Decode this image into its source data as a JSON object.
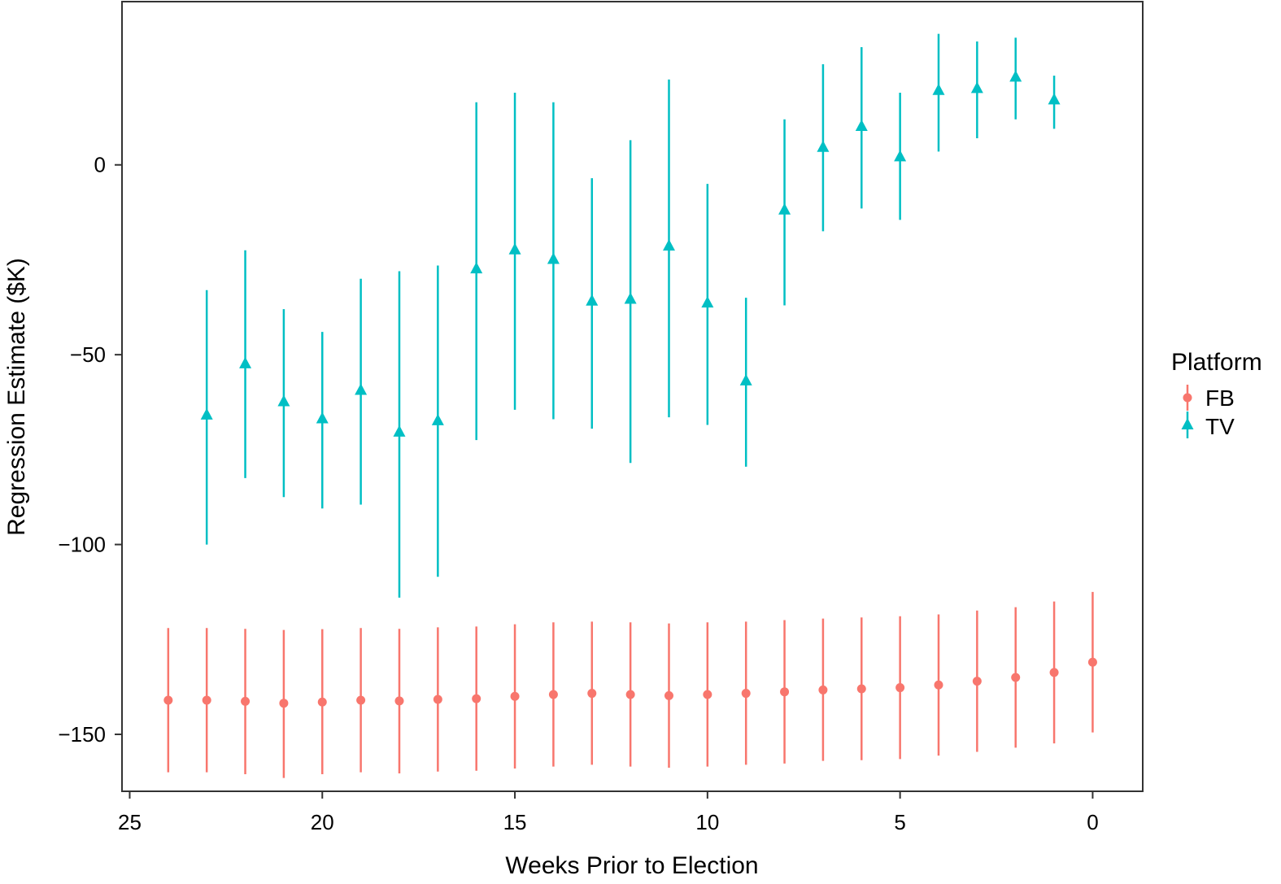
{
  "chart_data": {
    "type": "scatter",
    "subtype": "point-range (estimate with interval)",
    "xlabel": "Weeks Prior to Election",
    "ylabel": "Regression Estimate ($K)",
    "xlim": [
      25.2,
      -1.3
    ],
    "x_reversed": true,
    "ylim": [
      -165,
      43
    ],
    "xticks": [
      25,
      20,
      15,
      10,
      5,
      0
    ],
    "yticks": [
      0,
      -50,
      -100,
      -150
    ],
    "x_tick_labels": [
      "25",
      "20",
      "15",
      "10",
      "5",
      "0"
    ],
    "y_tick_labels": [
      "0",
      "−50",
      "−100",
      "−150"
    ],
    "grid": false,
    "legend": {
      "title": "Platform",
      "position": "right",
      "entries": [
        {
          "label": "FB",
          "marker": "circle",
          "color": "#F8766D"
        },
        {
          "label": "TV",
          "marker": "triangle",
          "color": "#00BFC4"
        }
      ]
    },
    "series": [
      {
        "name": "FB",
        "marker": "circle",
        "color": "#F8766D",
        "points": [
          {
            "x": 24,
            "y": -141.0,
            "lo": -160.0,
            "hi": -122.0
          },
          {
            "x": 23,
            "y": -141.0,
            "lo": -160.0,
            "hi": -122.0
          },
          {
            "x": 22,
            "y": -141.3,
            "lo": -160.5,
            "hi": -122.2
          },
          {
            "x": 21,
            "y": -141.8,
            "lo": -161.5,
            "hi": -122.5
          },
          {
            "x": 20,
            "y": -141.5,
            "lo": -160.5,
            "hi": -122.3
          },
          {
            "x": 19,
            "y": -141.0,
            "lo": -160.0,
            "hi": -122.0
          },
          {
            "x": 18,
            "y": -141.2,
            "lo": -160.3,
            "hi": -122.2
          },
          {
            "x": 17,
            "y": -140.8,
            "lo": -159.8,
            "hi": -121.8
          },
          {
            "x": 16,
            "y": -140.6,
            "lo": -159.6,
            "hi": -121.6
          },
          {
            "x": 15,
            "y": -140.0,
            "lo": -159.0,
            "hi": -121.0
          },
          {
            "x": 14,
            "y": -139.5,
            "lo": -158.5,
            "hi": -120.5
          },
          {
            "x": 13,
            "y": -139.2,
            "lo": -158.0,
            "hi": -120.3
          },
          {
            "x": 12,
            "y": -139.5,
            "lo": -158.5,
            "hi": -120.5
          },
          {
            "x": 11,
            "y": -139.8,
            "lo": -158.8,
            "hi": -120.8
          },
          {
            "x": 10,
            "y": -139.5,
            "lo": -158.5,
            "hi": -120.5
          },
          {
            "x": 9,
            "y": -139.2,
            "lo": -158.0,
            "hi": -120.3
          },
          {
            "x": 8,
            "y": -138.8,
            "lo": -157.7,
            "hi": -119.9
          },
          {
            "x": 7,
            "y": -138.3,
            "lo": -157.0,
            "hi": -119.5
          },
          {
            "x": 6,
            "y": -138.0,
            "lo": -156.8,
            "hi": -119.2
          },
          {
            "x": 5,
            "y": -137.7,
            "lo": -156.5,
            "hi": -118.9
          },
          {
            "x": 4,
            "y": -137.0,
            "lo": -155.6,
            "hi": -118.4
          },
          {
            "x": 3,
            "y": -136.0,
            "lo": -154.6,
            "hi": -117.4
          },
          {
            "x": 2,
            "y": -135.0,
            "lo": -153.5,
            "hi": -116.5
          },
          {
            "x": 1,
            "y": -133.7,
            "lo": -152.4,
            "hi": -115.0
          },
          {
            "x": 0,
            "y": -131.0,
            "lo": -149.5,
            "hi": -112.5
          }
        ]
      },
      {
        "name": "TV",
        "marker": "triangle",
        "color": "#00BFC4",
        "points": [
          {
            "x": 23,
            "y": -66.0,
            "lo": -100.0,
            "hi": -33.0
          },
          {
            "x": 22,
            "y": -52.5,
            "lo": -82.5,
            "hi": -22.5
          },
          {
            "x": 21,
            "y": -62.5,
            "lo": -87.5,
            "hi": -38.0
          },
          {
            "x": 20,
            "y": -67.0,
            "lo": -90.5,
            "hi": -44.0
          },
          {
            "x": 19,
            "y": -59.5,
            "lo": -89.5,
            "hi": -30.0
          },
          {
            "x": 18,
            "y": -70.5,
            "lo": -114.0,
            "hi": -28.0
          },
          {
            "x": 17,
            "y": -67.5,
            "lo": -108.5,
            "hi": -26.5
          },
          {
            "x": 16,
            "y": -27.5,
            "lo": -72.5,
            "hi": 16.5
          },
          {
            "x": 15,
            "y": -22.5,
            "lo": -64.5,
            "hi": 19.0
          },
          {
            "x": 14,
            "y": -25.0,
            "lo": -67.0,
            "hi": 16.5
          },
          {
            "x": 13,
            "y": -36.0,
            "lo": -69.5,
            "hi": -3.5
          },
          {
            "x": 12,
            "y": -35.5,
            "lo": -78.5,
            "hi": 6.5
          },
          {
            "x": 11,
            "y": -21.5,
            "lo": -66.5,
            "hi": 22.5
          },
          {
            "x": 10,
            "y": -36.5,
            "lo": -68.5,
            "hi": -5.0
          },
          {
            "x": 9,
            "y": -57.0,
            "lo": -79.5,
            "hi": -35.0
          },
          {
            "x": 8,
            "y": -12.0,
            "lo": -37.0,
            "hi": 12.0
          },
          {
            "x": 7,
            "y": 4.5,
            "lo": -17.5,
            "hi": 26.5
          },
          {
            "x": 6,
            "y": 10.0,
            "lo": -11.5,
            "hi": 31.0
          },
          {
            "x": 5,
            "y": 2.0,
            "lo": -14.5,
            "hi": 19.0
          },
          {
            "x": 4,
            "y": 19.5,
            "lo": 3.5,
            "hi": 34.5
          },
          {
            "x": 3,
            "y": 20.0,
            "lo": 7.0,
            "hi": 32.5
          },
          {
            "x": 2,
            "y": 23.0,
            "lo": 12.0,
            "hi": 33.5
          },
          {
            "x": 1,
            "y": 17.0,
            "lo": 9.5,
            "hi": 23.5
          }
        ]
      }
    ]
  }
}
